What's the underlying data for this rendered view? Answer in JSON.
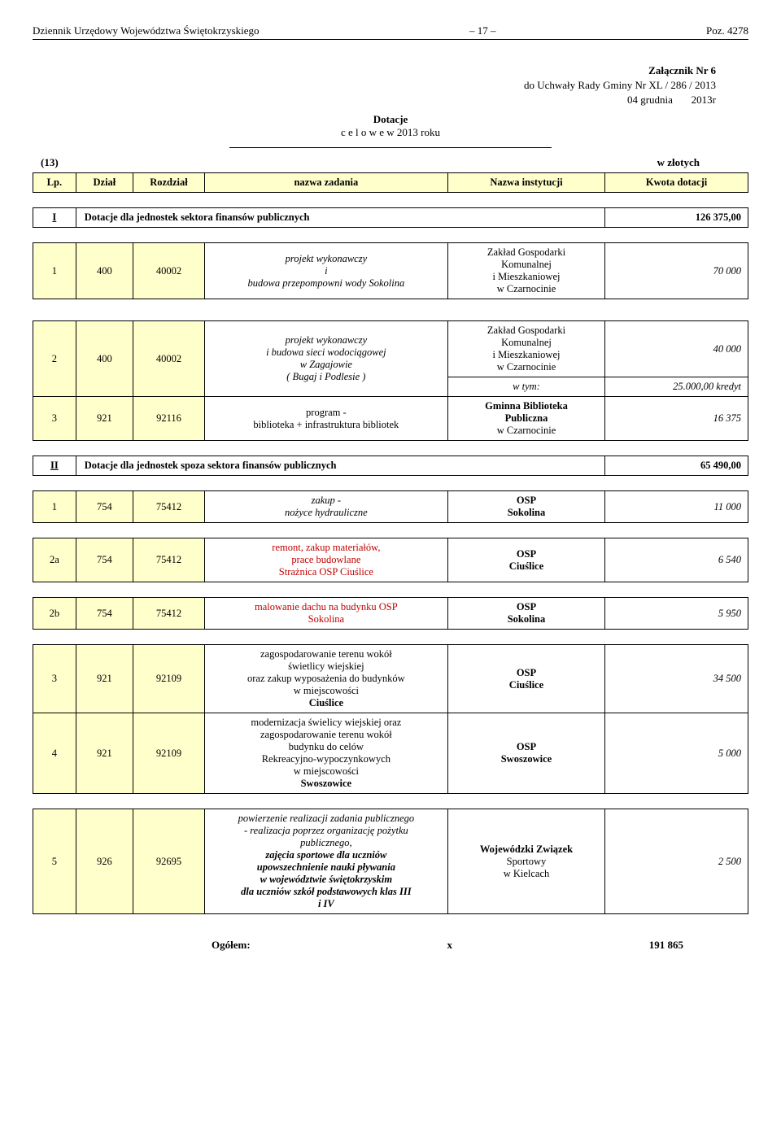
{
  "header": {
    "left": "Dziennik Urzędowy Województwa Świętokrzyskiego",
    "page": "– 17 –",
    "right": "Poz. 4278"
  },
  "attachment": {
    "line1": "Załącznik Nr  6",
    "line2": "do Uchwały Rady Gminy   Nr XL / 286 / 2013",
    "line3_left": "04 grudnia",
    "line3_right": "2013r"
  },
  "title": {
    "main": "Dotacje",
    "sub": "c e l o w e    w  2013 roku"
  },
  "currency_line": {
    "left": "(13)",
    "right": "w złotych"
  },
  "columns": {
    "lp": "Lp.",
    "dzial": "Dział",
    "rozdzial": "Rozdział",
    "zadanie": "nazwa zadania",
    "instytucja": "Nazwa instytucji",
    "kwota": "Kwota dotacji"
  },
  "section1": {
    "num": "I",
    "label": "Dotacje dla jednostek sektora finansów publicznych",
    "amount": "126 375,00",
    "rows": [
      {
        "lp": "1",
        "dzial": "400",
        "rozdzial": "40002",
        "zadanie": "projekt wykonawczy\ni\nbudowa przepompowni wody Sokolina",
        "instytucja": "Zakład Gospodarki\nKomunalnej\ni Mieszkaniowej\nw Czarnocinie",
        "kwota": "70 000",
        "italic": true
      },
      {
        "lp": "2",
        "dzial": "400",
        "rozdzial": "40002",
        "zadanie": "projekt wykonawczy\ni budowa sieci wodociągowej\nw Zagajowie\n( Bugaj i Podlesie )",
        "instytucja": "Zakład Gospodarki\nKomunalnej\ni Mieszkaniowej\nw Czarnocinie",
        "kwota": "40 000",
        "italic": true,
        "sub_inst": "w tym:",
        "sub_kwota": "25.000,00 kredyt"
      },
      {
        "lp": "3",
        "dzial": "921",
        "rozdzial": "92116",
        "zadanie": "program -\nbiblioteka + infrastruktura bibliotek",
        "instytucja": "Gminna Biblioteka\nPubliczna\nw Czarnocinie",
        "kwota": "16 375",
        "italic": false,
        "bold_inst": true
      }
    ]
  },
  "section2": {
    "num": "II",
    "label": "Dotacje dla jednostek spoza sektora finansów publicznych",
    "amount": "65 490,00",
    "rows": [
      {
        "lp": "1",
        "dzial": "754",
        "rozdzial": "75412",
        "zadanie": "zakup -\nnożyce hydrauliczne",
        "instytucja": "OSP\nSokolina",
        "kwota": "11 000",
        "italic": true,
        "bold_inst": true
      },
      {
        "lp": "2a",
        "dzial": "754",
        "rozdzial": "75412",
        "zadanie": "remont, zakup materiałów,\nprace budowlane\nStrażnica OSP Ciuślice",
        "instytucja": "OSP\nCiuślice",
        "kwota": "6 540",
        "italic": false,
        "red": true,
        "bold_inst": true
      },
      {
        "lp": "2b",
        "dzial": "754",
        "rozdzial": "75412",
        "zadanie": "malowanie dachu  na budynku OSP\nSokolina",
        "instytucja": "OSP\nSokolina",
        "kwota": "5 950",
        "italic": false,
        "red": true,
        "bold_inst": true
      },
      {
        "lp": "3",
        "dzial": "921",
        "rozdzial": "92109",
        "zadanie": "zagospodarowanie terenu wokół\nświetlicy wiejskiej\noraz zakup wyposażenia do budynków\nw miejscowości\nCiuślice",
        "instytucja": "OSP\nCiuślice",
        "kwota": "34 500",
        "italic": true,
        "bold_inst": true,
        "bold_last": true
      },
      {
        "lp": "4",
        "dzial": "921",
        "rozdzial": "92109",
        "zadanie": "modernizacja świelicy wiejskiej oraz\nzagospodarowanie terenu wokół\nbudynku do celów\nRekreacyjno-wypoczynkowych\nw miejscowości\nSwoszowice",
        "instytucja": "OSP\nSwoszowice",
        "kwota": "5 000",
        "italic": true,
        "bold_inst": true,
        "bold_last": true
      },
      {
        "lp": "5",
        "dzial": "926",
        "rozdzial": "92695",
        "zadanie": "powierzenie realizacji zadania publicznego\n- realizacja poprzez organizację pożytku\npublicznego,",
        "zadanie_bold": "zajęcia sportowe dla uczniów\nupowszechnienie nauki pływania\nw województwie świętokrzyskim\ndla uczniów szkół podstawowych klas III\ni IV",
        "instytucja": "Wojewódzki Związek\nSportowy\nw Kielcach",
        "kwota": "2 500",
        "italic": true,
        "bold_inst": true
      }
    ]
  },
  "total": {
    "label": "Ogółem:",
    "x": "x",
    "amount": "191 865"
  }
}
